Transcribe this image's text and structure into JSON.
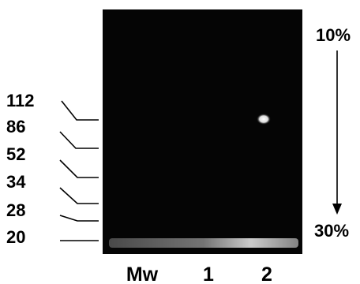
{
  "markers": [
    "112",
    "86",
    "52",
    "34",
    "28",
    "20"
  ],
  "lanes": [
    "Mw",
    "1",
    "2"
  ],
  "gradient": {
    "top": "10%",
    "bottom": "30%"
  }
}
